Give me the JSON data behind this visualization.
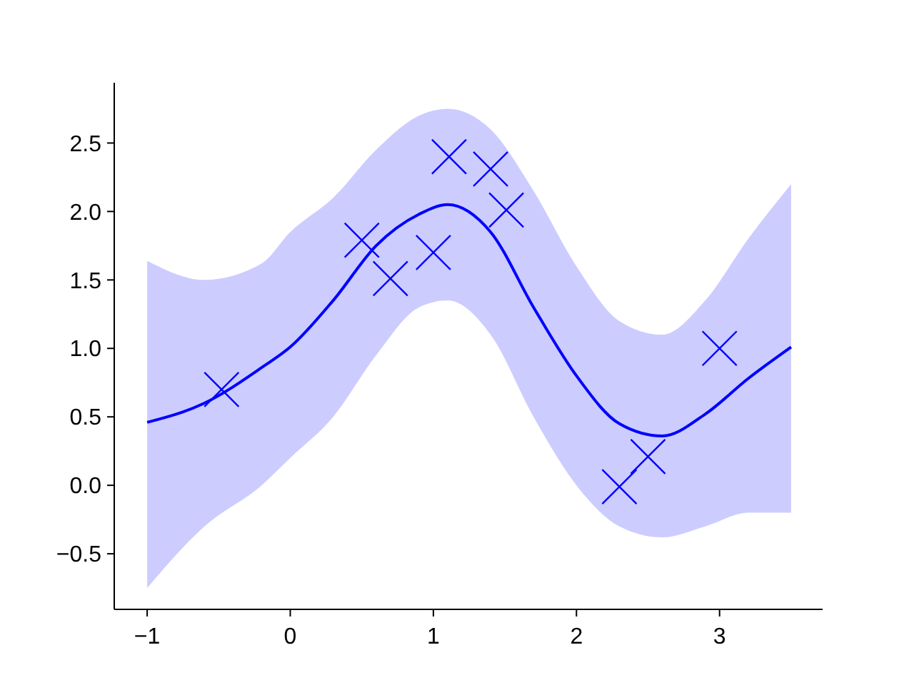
{
  "chart_data": {
    "type": "line",
    "xlim": [
      -1.23,
      3.72
    ],
    "ylim": [
      -0.906,
      2.94
    ],
    "xticks": [
      {
        "value": -1,
        "label": "−1"
      },
      0,
      1,
      2,
      3
    ],
    "yticks": [
      {
        "value": -0.5,
        "label": "−0.5"
      },
      {
        "value": 0,
        "label": "0.0"
      },
      0.5,
      {
        "value": 1,
        "label": "1.0"
      },
      1.5,
      {
        "value": 2,
        "label": "2.0"
      },
      2.5
    ],
    "grid": false,
    "series": [
      {
        "color": "#0000ff",
        "marker": "none",
        "line_style": "solid",
        "x": [
          -1,
          -0.6,
          -0.2,
          0,
          0.3,
          0.6,
          0.9,
          1.1,
          1.4,
          1.7,
          2.0,
          2.3,
          2.6,
          2.9,
          3.2,
          3.5
        ],
        "values": [
          0.46,
          0.6,
          0.86,
          1.01,
          1.35,
          1.75,
          1.98,
          2.05,
          1.85,
          1.3,
          0.8,
          0.45,
          0.36,
          0.52,
          0.78,
          1.01
        ],
        "upper": [
          1.64,
          1.5,
          1.62,
          1.85,
          2.1,
          2.45,
          2.7,
          2.75,
          2.6,
          2.15,
          1.6,
          1.2,
          1.1,
          1.35,
          1.8,
          2.2
        ],
        "lower": [
          -0.75,
          -0.3,
          0.0,
          0.2,
          0.5,
          0.95,
          1.3,
          1.35,
          1.1,
          0.5,
          0.0,
          -0.3,
          -0.38,
          -0.3,
          -0.2,
          -0.2
        ]
      },
      {
        "type": "scatter",
        "color": "#0000ff",
        "marker": "cross",
        "x": [
          -0.48,
          0.5,
          0.7,
          1.0,
          1.11,
          1.4,
          1.51,
          2.3,
          2.5,
          3.0
        ],
        "values": [
          0.7,
          1.79,
          1.51,
          1.7,
          2.4,
          2.31,
          2.01,
          -0.01,
          0.21,
          1.0
        ]
      }
    ]
  }
}
